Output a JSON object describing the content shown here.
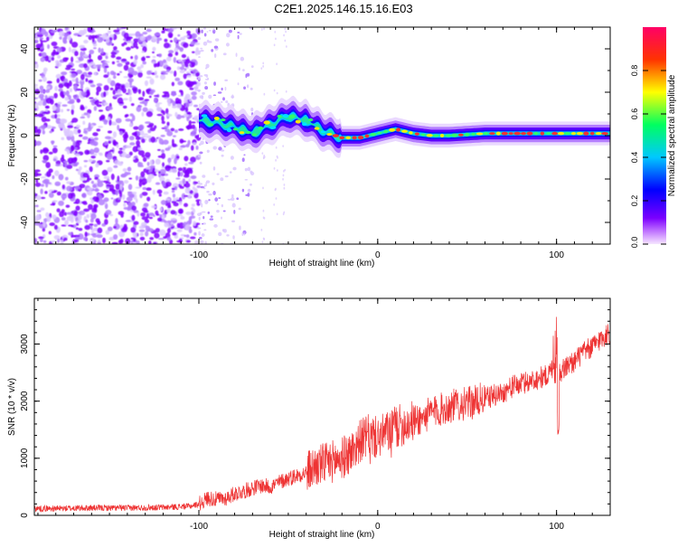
{
  "figure_title": "C2E1.2025.146.15.16.E03",
  "colors": {
    "snr_line": "#ee3333",
    "axis": "#000000",
    "colorbar_stops": [
      "#7a00ff",
      "#0000ff",
      "#00c8ff",
      "#00ff60",
      "#ffff00",
      "#ff3300",
      "#ff0066"
    ]
  },
  "chart_data": [
    {
      "type": "heatmap",
      "title": "",
      "xlabel": "Height of straight line (km)",
      "ylabel": "Frequency (Hz)",
      "xlim": [
        -192,
        130
      ],
      "ylim": [
        -50,
        50
      ],
      "xticks": [
        -100,
        0,
        100
      ],
      "yticks": [
        -40,
        -20,
        0,
        20,
        40
      ],
      "colorbar": {
        "label": "Normalized spectral amplitude",
        "range": [
          0,
          1
        ],
        "ticks": [
          "0.0",
          "0.2",
          "0.4",
          "0.6",
          "0.8"
        ]
      },
      "ridge": {
        "description_points_x": [
          -100,
          -90,
          -80,
          -70,
          -60,
          -50,
          -40,
          -30,
          -20,
          -10,
          0,
          10,
          20,
          30,
          40,
          60,
          80,
          100,
          130
        ],
        "frequency_hz": [
          7,
          6,
          4,
          1,
          5,
          9,
          7,
          2,
          -1,
          -1,
          1,
          3,
          1,
          0,
          0,
          1,
          1,
          1,
          1
        ]
      }
    },
    {
      "type": "line",
      "title": "",
      "xlabel": "Height of straight line (km)",
      "ylabel": "SNR (10 * v/v)",
      "xlim": [
        -192,
        130
      ],
      "ylim": [
        0,
        3800
      ],
      "xticks": [
        -100,
        0,
        100
      ],
      "yticks": [
        0,
        1000,
        2000,
        3000
      ],
      "x": [
        -192,
        -180,
        -160,
        -140,
        -120,
        -105,
        -100,
        -95,
        -90,
        -85,
        -80,
        -75,
        -70,
        -65,
        -60,
        -55,
        -50,
        -45,
        -40,
        -35,
        -30,
        -25,
        -20,
        -15,
        -10,
        -5,
        0,
        5,
        10,
        15,
        20,
        25,
        30,
        35,
        40,
        45,
        50,
        55,
        60,
        65,
        70,
        75,
        80,
        85,
        90,
        95,
        98,
        100,
        102,
        105,
        110,
        115,
        120,
        125,
        130
      ],
      "values": [
        120,
        120,
        130,
        130,
        140,
        160,
        200,
        300,
        280,
        300,
        380,
        420,
        480,
        520,
        500,
        580,
        650,
        700,
        750,
        850,
        900,
        950,
        1000,
        1100,
        1300,
        1400,
        1350,
        1450,
        1550,
        1600,
        1650,
        1700,
        1800,
        1850,
        1900,
        1950,
        1950,
        2000,
        2050,
        2100,
        2150,
        2250,
        2300,
        2350,
        2400,
        2450,
        2600,
        2500,
        2500,
        2600,
        2700,
        2850,
        2950,
        3100,
        3200
      ]
    }
  ]
}
